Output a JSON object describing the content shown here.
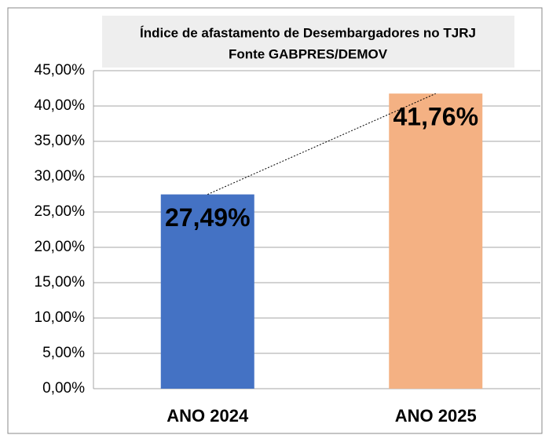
{
  "chart_data": {
    "type": "bar",
    "title": "Índice de afastamento  de Desembargadores no TJRJ",
    "subtitle": "Fonte  GABPRES/DEMOV",
    "categories": [
      "ANO 2024",
      "ANO 2025"
    ],
    "values": [
      27.49,
      41.76
    ],
    "value_labels": [
      "27,49%",
      "41,76%"
    ],
    "colors": [
      "#4472c4",
      "#f4b183"
    ],
    "ylim": [
      0,
      45
    ],
    "yticks": [
      {
        "value": 0,
        "label": "0,00%"
      },
      {
        "value": 5,
        "label": "5,00%"
      },
      {
        "value": 10,
        "label": "10,00%"
      },
      {
        "value": 15,
        "label": "15,00%"
      },
      {
        "value": 20,
        "label": "20,00%"
      },
      {
        "value": 25,
        "label": "25,00%"
      },
      {
        "value": 30,
        "label": "30,00%"
      },
      {
        "value": 35,
        "label": "35,00%"
      },
      {
        "value": 40,
        "label": "40,00%"
      },
      {
        "value": 45,
        "label": "45,00%"
      }
    ],
    "grid": true,
    "trendline": true
  }
}
